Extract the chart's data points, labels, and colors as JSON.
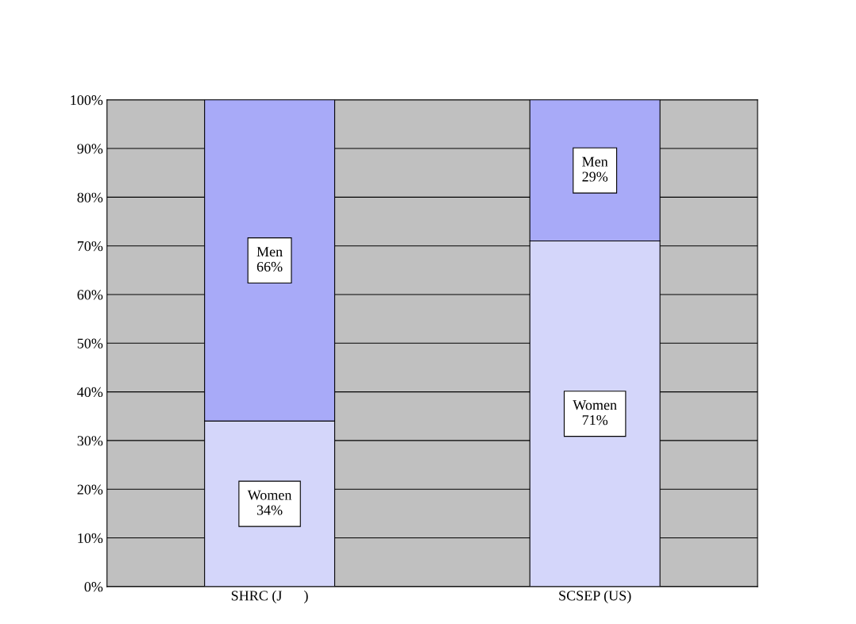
{
  "chart_data": {
    "type": "bar",
    "stacked": true,
    "categories": [
      "SHRC (J      )",
      "SCSEP (US)"
    ],
    "series": [
      {
        "name": "Women",
        "color": "#d4d6fa",
        "values": [
          34,
          71
        ],
        "value_labels": [
          "34%",
          "71%"
        ]
      },
      {
        "name": "Men",
        "color": "#a8aaf8",
        "values": [
          66,
          29
        ],
        "value_labels": [
          "66%",
          "29%"
        ]
      }
    ],
    "ylim": [
      0,
      100
    ],
    "yticks": [
      {
        "value": 0,
        "label": "0%"
      },
      {
        "value": 10,
        "label": "10%"
      },
      {
        "value": 20,
        "label": "20%"
      },
      {
        "value": 30,
        "label": "30%"
      },
      {
        "value": 40,
        "label": "40%"
      },
      {
        "value": 50,
        "label": "50%"
      },
      {
        "value": 60,
        "label": "60%"
      },
      {
        "value": 70,
        "label": "70%"
      },
      {
        "value": 80,
        "label": "80%"
      },
      {
        "value": 90,
        "label": "90%"
      },
      {
        "value": 100,
        "label": "100%"
      }
    ],
    "grid": "y",
    "legend": false
  }
}
